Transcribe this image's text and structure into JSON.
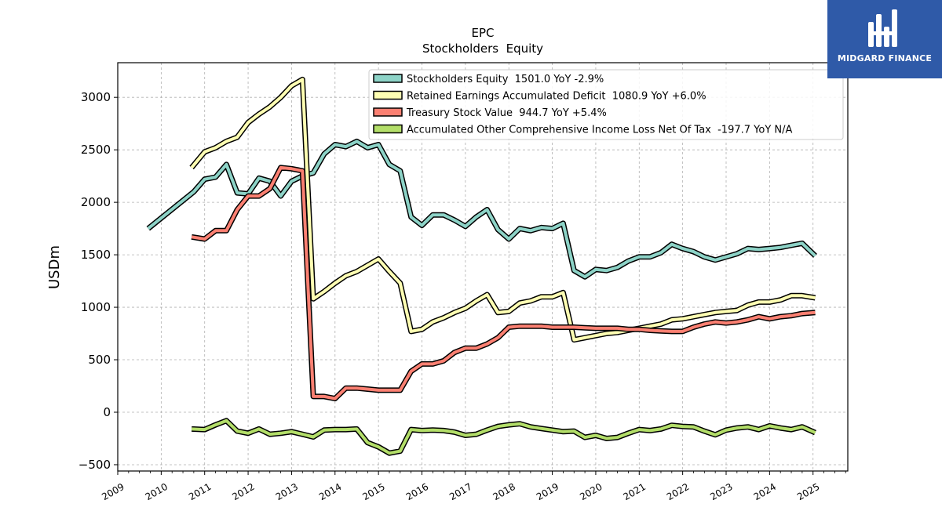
{
  "chart_data": {
    "type": "line",
    "title": "EPC",
    "subtitle": "Stockholders  Equity",
    "ylabel": "USDm",
    "xlabel": "",
    "ylim": [
      -560,
      3330
    ],
    "xlim": [
      2009.0,
      2025.8
    ],
    "yticks": [
      -500,
      0,
      500,
      1000,
      1500,
      2000,
      2500,
      3000
    ],
    "ytick_labels": [
      "−500",
      "0",
      "500",
      "1000",
      "1500",
      "2000",
      "2500",
      "3000"
    ],
    "xticks": [
      2009,
      2010,
      2011,
      2012,
      2013,
      2014,
      2015,
      2016,
      2017,
      2018,
      2019,
      2020,
      2021,
      2022,
      2023,
      2024,
      2025
    ],
    "xtick_labels": [
      "2009",
      "2010",
      "2011",
      "2012",
      "2013",
      "2014",
      "2015",
      "2016",
      "2017",
      "2018",
      "2019",
      "2020",
      "2021",
      "2022",
      "2023",
      "2024",
      "2025"
    ],
    "grid": true,
    "legend_position": "top-right",
    "series": [
      {
        "name": "Stockholders Equity  1501.0 YoY -2.9%",
        "color": "#8dd3c7",
        "points": [
          [
            2009.7,
            1750
          ],
          [
            2010.75,
            2100
          ],
          [
            2011.0,
            2220
          ],
          [
            2011.25,
            2240
          ],
          [
            2011.5,
            2360
          ],
          [
            2011.75,
            2090
          ],
          [
            2012.0,
            2080
          ],
          [
            2012.25,
            2230
          ],
          [
            2012.5,
            2200
          ],
          [
            2012.75,
            2060
          ],
          [
            2013.0,
            2200
          ],
          [
            2013.25,
            2250
          ],
          [
            2013.5,
            2280
          ],
          [
            2013.75,
            2460
          ],
          [
            2014.0,
            2550
          ],
          [
            2014.25,
            2530
          ],
          [
            2014.5,
            2580
          ],
          [
            2014.75,
            2520
          ],
          [
            2015.0,
            2550
          ],
          [
            2015.25,
            2360
          ],
          [
            2015.5,
            2300
          ],
          [
            2015.75,
            1860
          ],
          [
            2016.0,
            1780
          ],
          [
            2016.25,
            1880
          ],
          [
            2016.5,
            1880
          ],
          [
            2016.75,
            1830
          ],
          [
            2017.0,
            1770
          ],
          [
            2017.25,
            1860
          ],
          [
            2017.5,
            1930
          ],
          [
            2017.75,
            1740
          ],
          [
            2018.0,
            1650
          ],
          [
            2018.25,
            1750
          ],
          [
            2018.5,
            1730
          ],
          [
            2018.75,
            1760
          ],
          [
            2019.0,
            1750
          ],
          [
            2019.25,
            1800
          ],
          [
            2019.5,
            1350
          ],
          [
            2019.75,
            1290
          ],
          [
            2020.0,
            1360
          ],
          [
            2020.25,
            1350
          ],
          [
            2020.5,
            1380
          ],
          [
            2020.75,
            1440
          ],
          [
            2021.0,
            1480
          ],
          [
            2021.25,
            1480
          ],
          [
            2021.5,
            1520
          ],
          [
            2021.75,
            1600
          ],
          [
            2022.0,
            1560
          ],
          [
            2022.25,
            1530
          ],
          [
            2022.5,
            1480
          ],
          [
            2022.75,
            1450
          ],
          [
            2023.0,
            1480
          ],
          [
            2023.25,
            1510
          ],
          [
            2023.5,
            1560
          ],
          [
            2023.75,
            1550
          ],
          [
            2024.0,
            1560
          ],
          [
            2024.25,
            1570
          ],
          [
            2024.5,
            1590
          ],
          [
            2024.75,
            1610
          ],
          [
            2025.05,
            1490
          ]
        ]
      },
      {
        "name": "Retained Earnings Accumulated Deficit  1080.9 YoY +6.0%",
        "color": "#ffffb3",
        "points": [
          [
            2010.7,
            2330
          ],
          [
            2011.0,
            2480
          ],
          [
            2011.25,
            2520
          ],
          [
            2011.5,
            2580
          ],
          [
            2011.75,
            2620
          ],
          [
            2012.0,
            2760
          ],
          [
            2012.25,
            2840
          ],
          [
            2012.5,
            2910
          ],
          [
            2012.75,
            3000
          ],
          [
            2013.0,
            3110
          ],
          [
            2013.25,
            3170
          ],
          [
            2013.5,
            1080
          ],
          [
            2013.75,
            1150
          ],
          [
            2014.0,
            1230
          ],
          [
            2014.25,
            1300
          ],
          [
            2014.5,
            1340
          ],
          [
            2014.75,
            1400
          ],
          [
            2015.0,
            1460
          ],
          [
            2015.25,
            1340
          ],
          [
            2015.5,
            1230
          ],
          [
            2015.75,
            770
          ],
          [
            2016.0,
            790
          ],
          [
            2016.25,
            860
          ],
          [
            2016.5,
            900
          ],
          [
            2016.75,
            950
          ],
          [
            2017.0,
            990
          ],
          [
            2017.25,
            1060
          ],
          [
            2017.5,
            1120
          ],
          [
            2017.75,
            950
          ],
          [
            2018.0,
            960
          ],
          [
            2018.25,
            1040
          ],
          [
            2018.5,
            1060
          ],
          [
            2018.75,
            1100
          ],
          [
            2019.0,
            1100
          ],
          [
            2019.25,
            1140
          ],
          [
            2019.5,
            690
          ],
          [
            2019.75,
            710
          ],
          [
            2020.0,
            730
          ],
          [
            2020.25,
            750
          ],
          [
            2020.5,
            760
          ],
          [
            2020.75,
            780
          ],
          [
            2021.0,
            800
          ],
          [
            2021.25,
            820
          ],
          [
            2021.5,
            840
          ],
          [
            2021.75,
            880
          ],
          [
            2022.0,
            890
          ],
          [
            2022.25,
            910
          ],
          [
            2022.5,
            930
          ],
          [
            2022.75,
            950
          ],
          [
            2023.0,
            960
          ],
          [
            2023.25,
            970
          ],
          [
            2023.5,
            1020
          ],
          [
            2023.75,
            1050
          ],
          [
            2024.0,
            1050
          ],
          [
            2024.25,
            1070
          ],
          [
            2024.5,
            1110
          ],
          [
            2024.75,
            1110
          ],
          [
            2025.05,
            1090
          ]
        ]
      },
      {
        "name": "Treasury Stock Value  944.7 YoY +5.4%",
        "color": "#fb8072",
        "points": [
          [
            2010.7,
            1670
          ],
          [
            2011.0,
            1650
          ],
          [
            2011.25,
            1730
          ],
          [
            2011.5,
            1730
          ],
          [
            2011.75,
            1930
          ],
          [
            2012.0,
            2060
          ],
          [
            2012.25,
            2060
          ],
          [
            2012.5,
            2130
          ],
          [
            2012.75,
            2330
          ],
          [
            2013.0,
            2320
          ],
          [
            2013.25,
            2300
          ],
          [
            2013.5,
            150
          ],
          [
            2013.75,
            150
          ],
          [
            2014.0,
            130
          ],
          [
            2014.25,
            230
          ],
          [
            2014.5,
            230
          ],
          [
            2014.75,
            220
          ],
          [
            2015.0,
            210
          ],
          [
            2015.25,
            210
          ],
          [
            2015.5,
            210
          ],
          [
            2015.75,
            390
          ],
          [
            2016.0,
            460
          ],
          [
            2016.25,
            460
          ],
          [
            2016.5,
            490
          ],
          [
            2016.75,
            570
          ],
          [
            2017.0,
            610
          ],
          [
            2017.25,
            610
          ],
          [
            2017.5,
            650
          ],
          [
            2017.75,
            710
          ],
          [
            2018.0,
            810
          ],
          [
            2018.25,
            820
          ],
          [
            2018.5,
            820
          ],
          [
            2018.75,
            820
          ],
          [
            2019.0,
            810
          ],
          [
            2019.25,
            810
          ],
          [
            2019.5,
            810
          ],
          [
            2019.75,
            805
          ],
          [
            2020.0,
            800
          ],
          [
            2020.25,
            800
          ],
          [
            2020.5,
            800
          ],
          [
            2020.75,
            790
          ],
          [
            2021.0,
            790
          ],
          [
            2021.25,
            780
          ],
          [
            2021.5,
            775
          ],
          [
            2021.75,
            770
          ],
          [
            2022.0,
            770
          ],
          [
            2022.25,
            810
          ],
          [
            2022.5,
            840
          ],
          [
            2022.75,
            860
          ],
          [
            2023.0,
            850
          ],
          [
            2023.25,
            860
          ],
          [
            2023.5,
            880
          ],
          [
            2023.75,
            910
          ],
          [
            2024.0,
            890
          ],
          [
            2024.25,
            910
          ],
          [
            2024.5,
            920
          ],
          [
            2024.75,
            940
          ],
          [
            2025.05,
            950
          ]
        ]
      },
      {
        "name": "Accumulated Other Comprehensive Income Loss Net Of Tax  -197.7 YoY N/A",
        "color": "#b3de69",
        "points": [
          [
            2010.7,
            -160
          ],
          [
            2011.0,
            -165
          ],
          [
            2011.25,
            -120
          ],
          [
            2011.5,
            -80
          ],
          [
            2011.75,
            -180
          ],
          [
            2012.0,
            -200
          ],
          [
            2012.25,
            -160
          ],
          [
            2012.5,
            -210
          ],
          [
            2012.75,
            -200
          ],
          [
            2013.0,
            -185
          ],
          [
            2013.25,
            -210
          ],
          [
            2013.5,
            -235
          ],
          [
            2013.75,
            -170
          ],
          [
            2014.0,
            -165
          ],
          [
            2014.25,
            -165
          ],
          [
            2014.5,
            -160
          ],
          [
            2014.75,
            -290
          ],
          [
            2015.0,
            -330
          ],
          [
            2015.25,
            -390
          ],
          [
            2015.5,
            -370
          ],
          [
            2015.75,
            -165
          ],
          [
            2016.0,
            -175
          ],
          [
            2016.25,
            -170
          ],
          [
            2016.5,
            -175
          ],
          [
            2016.75,
            -190
          ],
          [
            2017.0,
            -220
          ],
          [
            2017.25,
            -210
          ],
          [
            2017.5,
            -170
          ],
          [
            2017.75,
            -135
          ],
          [
            2018.0,
            -120
          ],
          [
            2018.25,
            -110
          ],
          [
            2018.5,
            -140
          ],
          [
            2018.75,
            -155
          ],
          [
            2019.0,
            -170
          ],
          [
            2019.25,
            -185
          ],
          [
            2019.5,
            -180
          ],
          [
            2019.75,
            -240
          ],
          [
            2020.0,
            -220
          ],
          [
            2020.25,
            -250
          ],
          [
            2020.5,
            -240
          ],
          [
            2020.75,
            -200
          ],
          [
            2021.0,
            -165
          ],
          [
            2021.25,
            -175
          ],
          [
            2021.5,
            -160
          ],
          [
            2021.75,
            -125
          ],
          [
            2022.0,
            -135
          ],
          [
            2022.25,
            -140
          ],
          [
            2022.5,
            -180
          ],
          [
            2022.75,
            -215
          ],
          [
            2023.0,
            -170
          ],
          [
            2023.25,
            -150
          ],
          [
            2023.5,
            -140
          ],
          [
            2023.75,
            -165
          ],
          [
            2024.0,
            -130
          ],
          [
            2024.25,
            -150
          ],
          [
            2024.5,
            -165
          ],
          [
            2024.75,
            -140
          ],
          [
            2025.05,
            -195
          ]
        ]
      }
    ]
  },
  "logo": {
    "text": "MIDGARD FINANCE",
    "background": "#2f5aa8"
  }
}
